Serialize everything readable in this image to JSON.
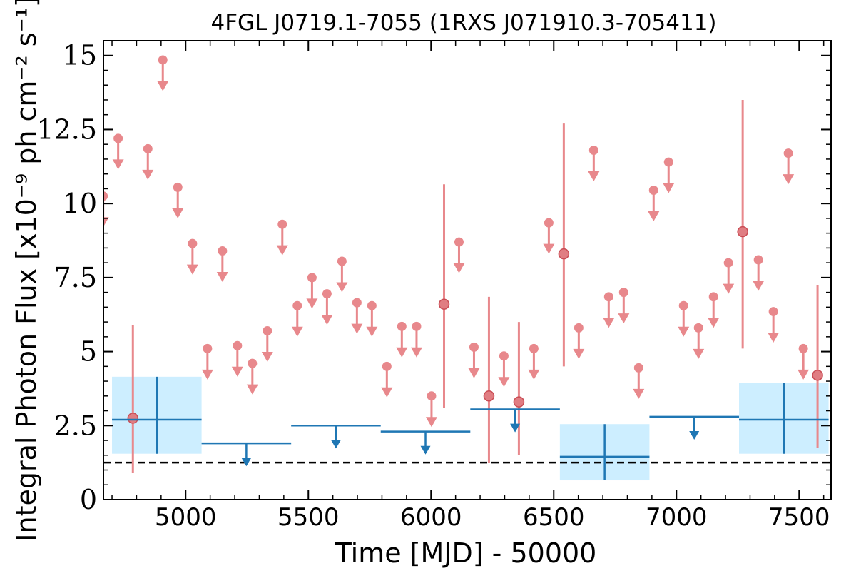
{
  "chart_data": {
    "type": "scatter",
    "title": "4FGL J0719.1-7055 (1RXS J071910.3-705411)",
    "xlabel": "Time [MJD] - 50000",
    "ylabel": "Integral Photon Flux [x10⁻⁹ ph cm⁻² s⁻¹]",
    "xlim": [
      4665,
      7630
    ],
    "ylim": [
      0,
      15.5
    ],
    "xticks": [
      5000,
      5500,
      6000,
      6500,
      7000,
      7500
    ],
    "xtick_labels": [
      "5000",
      "5500",
      "6000",
      "6500",
      "7000",
      "7500"
    ],
    "yticks": [
      0,
      2.5,
      5,
      7.5,
      10,
      12.5,
      15
    ],
    "ytick_labels": [
      "0",
      "2.5",
      "5",
      "7.5",
      "10",
      "12.5",
      "15"
    ],
    "reference_line": {
      "y": 1.25,
      "style": "dashed",
      "color": "#000000"
    },
    "series": [
      {
        "kind": "short_bins",
        "color": "#e8888c",
        "detections": [
          {
            "x": 4785,
            "y": 2.75,
            "ylo": 0.9,
            "yhi": 5.9
          },
          {
            "x": 6053,
            "y": 6.6,
            "ylo": 3.1,
            "yhi": 10.65
          },
          {
            "x": 6236,
            "y": 3.5,
            "ylo": 1.25,
            "yhi": 6.85
          },
          {
            "x": 6358,
            "y": 3.3,
            "ylo": 1.5,
            "yhi": 6.0
          },
          {
            "x": 6541,
            "y": 8.3,
            "ylo": 4.5,
            "yhi": 12.7
          },
          {
            "x": 7270,
            "y": 9.05,
            "ylo": 5.1,
            "yhi": 13.5
          },
          {
            "x": 7575,
            "y": 4.2,
            "ylo": 1.75,
            "yhi": 7.25
          }
        ],
        "upper_limits": [
          {
            "x": 4664,
            "y": 10.25
          },
          {
            "x": 4725,
            "y": 12.2
          },
          {
            "x": 4846,
            "y": 11.85
          },
          {
            "x": 4907,
            "y": 14.85
          },
          {
            "x": 4968,
            "y": 10.55
          },
          {
            "x": 5028,
            "y": 8.65
          },
          {
            "x": 5089,
            "y": 5.1
          },
          {
            "x": 5150,
            "y": 8.4
          },
          {
            "x": 5211,
            "y": 5.2
          },
          {
            "x": 5272,
            "y": 4.6
          },
          {
            "x": 5333,
            "y": 5.7
          },
          {
            "x": 5394,
            "y": 9.3
          },
          {
            "x": 5455,
            "y": 6.55
          },
          {
            "x": 5515,
            "y": 7.5
          },
          {
            "x": 5576,
            "y": 6.95
          },
          {
            "x": 5637,
            "y": 8.05
          },
          {
            "x": 5698,
            "y": 6.65
          },
          {
            "x": 5759,
            "y": 6.55
          },
          {
            "x": 5820,
            "y": 4.5
          },
          {
            "x": 5881,
            "y": 5.85
          },
          {
            "x": 5941,
            "y": 5.85
          },
          {
            "x": 6002,
            "y": 3.5
          },
          {
            "x": 6114,
            "y": 8.7
          },
          {
            "x": 6175,
            "y": 5.15
          },
          {
            "x": 6297,
            "y": 4.85
          },
          {
            "x": 6419,
            "y": 5.1
          },
          {
            "x": 6480,
            "y": 9.35
          },
          {
            "x": 6602,
            "y": 5.8
          },
          {
            "x": 6663,
            "y": 11.8
          },
          {
            "x": 6724,
            "y": 6.85
          },
          {
            "x": 6785,
            "y": 7.0
          },
          {
            "x": 6846,
            "y": 4.45
          },
          {
            "x": 6907,
            "y": 10.45
          },
          {
            "x": 6968,
            "y": 11.4
          },
          {
            "x": 7029,
            "y": 6.55
          },
          {
            "x": 7090,
            "y": 5.8
          },
          {
            "x": 7151,
            "y": 6.85
          },
          {
            "x": 7212,
            "y": 8.0
          },
          {
            "x": 7334,
            "y": 8.1
          },
          {
            "x": 7395,
            "y": 6.35
          },
          {
            "x": 7456,
            "y": 11.7
          },
          {
            "x": 7517,
            "y": 5.1
          }
        ]
      },
      {
        "kind": "long_bins",
        "color": "#1f77b4",
        "band_color": "#cdeeff",
        "detections": [
          {
            "x0": 4700,
            "x1": 5065,
            "y": 2.7,
            "ylo": 1.55,
            "yhi": 4.15
          },
          {
            "x0": 6525,
            "x1": 6890,
            "y": 1.45,
            "ylo": 0.65,
            "yhi": 2.55
          },
          {
            "x0": 7255,
            "x1": 7620,
            "y": 2.7,
            "ylo": 1.55,
            "yhi": 3.95
          }
        ],
        "upper_limits": [
          {
            "x0": 5065,
            "x1": 5430,
            "y": 1.9
          },
          {
            "x0": 5430,
            "x1": 5795,
            "y": 2.5
          },
          {
            "x0": 5795,
            "x1": 6160,
            "y": 2.3
          },
          {
            "x0": 6160,
            "x1": 6525,
            "y": 3.05
          },
          {
            "x0": 6890,
            "x1": 7255,
            "y": 2.8
          }
        ]
      }
    ]
  }
}
